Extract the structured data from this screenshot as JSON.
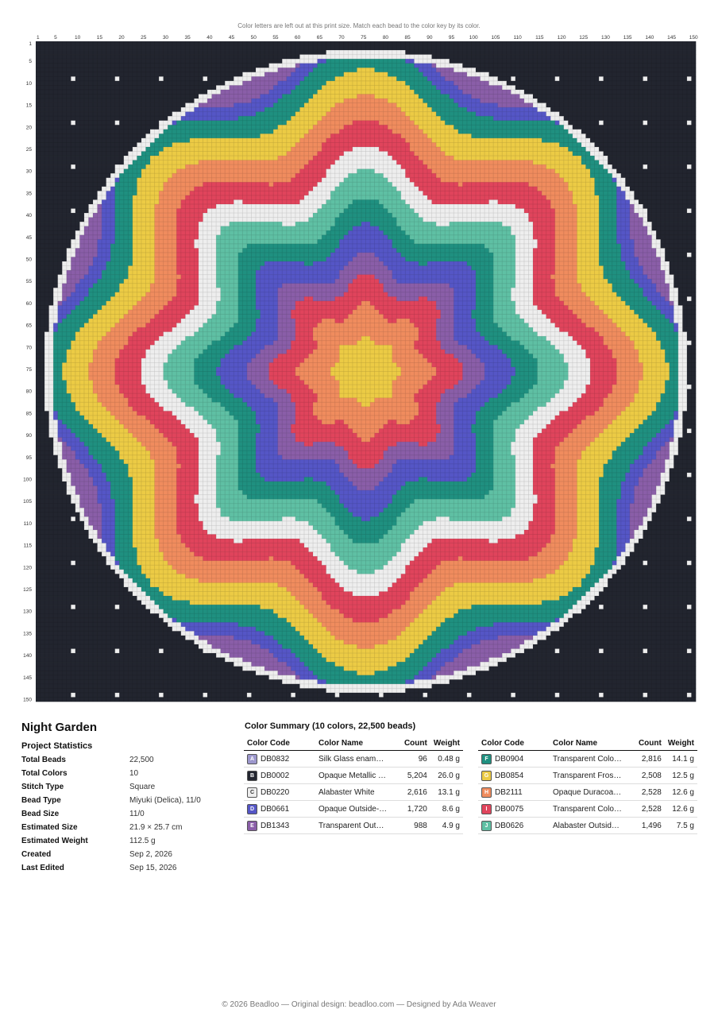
{
  "notice": "Color letters are left out at this print size. Match each bead to the color key by its color.",
  "column_labels": [
    1,
    5,
    10,
    15,
    20,
    25,
    30,
    35,
    40,
    45,
    50,
    55,
    60,
    65,
    70,
    75,
    80,
    85,
    90,
    95,
    100,
    105,
    110,
    115,
    120,
    125,
    130,
    135,
    140,
    145,
    150
  ],
  "row_labels": [
    1,
    5,
    10,
    15,
    20,
    25,
    30,
    35,
    40,
    45,
    50,
    55,
    60,
    65,
    70,
    75,
    80,
    85,
    90,
    95,
    100,
    105,
    110,
    115,
    120,
    125,
    130,
    135,
    140,
    145,
    150
  ],
  "title": "Night Garden",
  "stats_heading": "Project Statistics",
  "stats": [
    {
      "label": "Total Beads",
      "value": "22,500"
    },
    {
      "label": "Total Colors",
      "value": "10"
    },
    {
      "label": "Stitch Type",
      "value": "Square"
    },
    {
      "label": "Bead Type",
      "value": "Miyuki (Delica), 11/0"
    },
    {
      "label": "Bead Size",
      "value": "11/0"
    },
    {
      "label": "Estimated Size",
      "value": "21.9 × 25.7 cm"
    },
    {
      "label": "Estimated Weight",
      "value": "112.5 g"
    },
    {
      "label": "Created",
      "value": "Sep 2, 2026"
    },
    {
      "label": "Last Edited",
      "value": "Sep 15, 2026"
    }
  ],
  "summary_title": "Color Summary (10 colors, 22,500 beads)",
  "table_headers": [
    "Color Code",
    "Color Name",
    "Count",
    "Weight"
  ],
  "tables": [
    [
      {
        "letter": "A",
        "code": "DB0832",
        "name": "Silk Glass enam…",
        "count": "96",
        "weight": "0.48 g",
        "color": "#9c97cc"
      },
      {
        "letter": "B",
        "code": "DB0002",
        "name": "Opaque Metallic …",
        "count": "5,204",
        "weight": "26.0 g",
        "color": "#22252f"
      },
      {
        "letter": "C",
        "code": "DB0220",
        "name": "Alabaster White",
        "count": "2,616",
        "weight": "13.1 g",
        "color": "#eeeeee"
      },
      {
        "letter": "D",
        "code": "DB0661",
        "name": "Opaque Outside-…",
        "count": "1,720",
        "weight": "8.6 g",
        "color": "#5556c6"
      },
      {
        "letter": "E",
        "code": "DB1343",
        "name": "Transparent Out…",
        "count": "988",
        "weight": "4.9 g",
        "color": "#8a5ea8"
      }
    ],
    [
      {
        "letter": "F",
        "code": "DB0904",
        "name": "Transparent Colo…",
        "count": "2,816",
        "weight": "14.1 g",
        "color": "#1f9080"
      },
      {
        "letter": "G",
        "code": "DB0854",
        "name": "Transparent Fros…",
        "count": "2,508",
        "weight": "12.5 g",
        "color": "#eccb45"
      },
      {
        "letter": "H",
        "code": "DB2111",
        "name": "Opaque Duracoa…",
        "count": "2,528",
        "weight": "12.6 g",
        "color": "#f08c5e"
      },
      {
        "letter": "I",
        "code": "DB0075",
        "name": "Transparent Colo…",
        "count": "2,528",
        "weight": "12.6 g",
        "color": "#e0445c"
      },
      {
        "letter": "J",
        "code": "DB0626",
        "name": "Alabaster Outsid…",
        "count": "1,496",
        "weight": "7.5 g",
        "color": "#5fc0a4"
      }
    ]
  ],
  "footer": "© 2026 Beadloo — Original design: beadloo.com — Designed by Ada Weaver"
}
